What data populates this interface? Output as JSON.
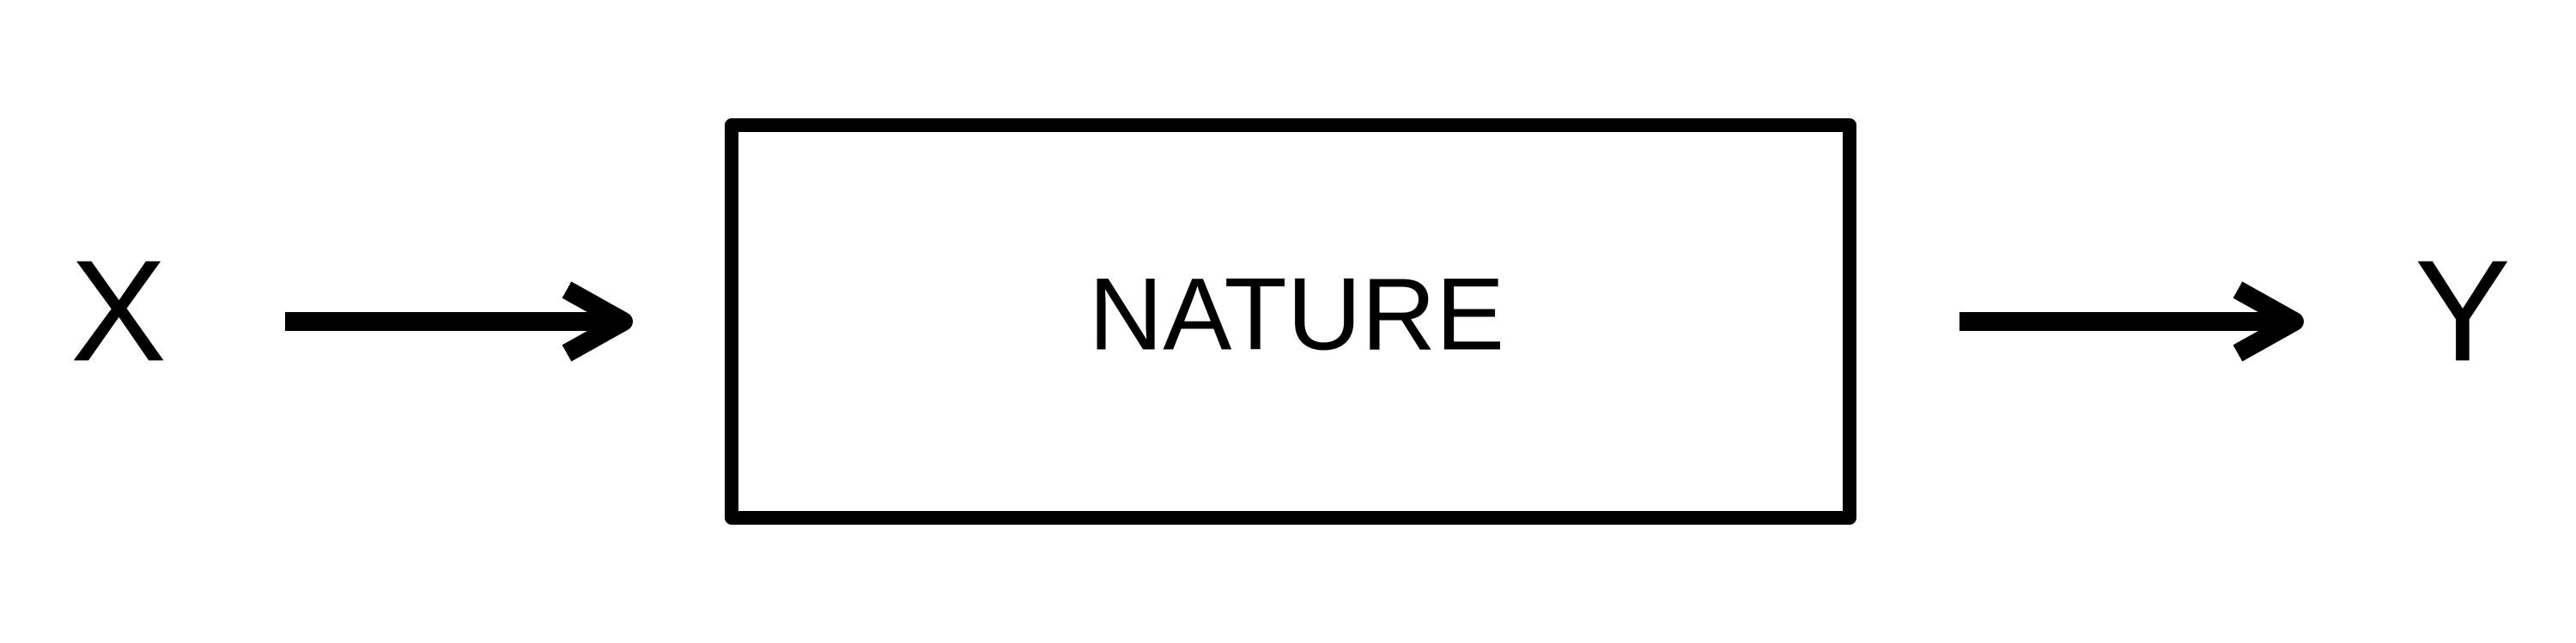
{
  "diagram": {
    "input_label": "X",
    "box_label": "NATURE",
    "output_label": "Y",
    "stroke_color": "#000000",
    "background_color": "#ffffff"
  }
}
